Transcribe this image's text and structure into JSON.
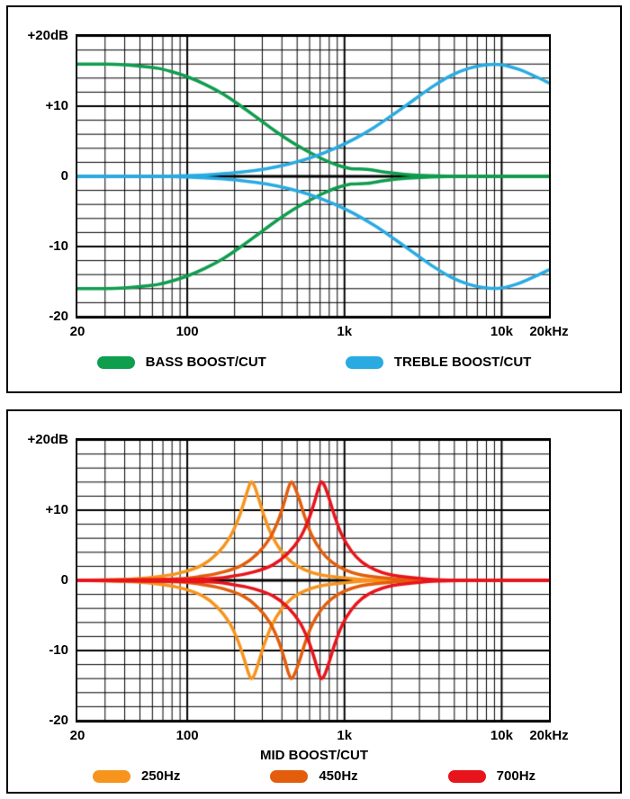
{
  "page": {
    "background": "#ffffff",
    "grid_color": "#000000",
    "text_color": "#000000"
  },
  "colors": {
    "bass_green": "#0f9d4e",
    "treble_blue": "#29abe2",
    "mid_250_orange": "#f7941d",
    "mid_450_orange_red": "#e35d0c",
    "mid_700_red": "#e8141c"
  },
  "chart_data": [
    {
      "type": "line",
      "title": "",
      "xlabel": "",
      "ylabel": "",
      "x_scale": "log",
      "x_min": 20,
      "x_max": 20000,
      "y_min": -20,
      "y_max": 20,
      "grid": {
        "y_minor_step": 2,
        "x_minor": "log-integer-multiples",
        "grid_on": true
      },
      "y_ticks": [
        {
          "value": 20,
          "label": "+20dB"
        },
        {
          "value": 10,
          "label": "+10"
        },
        {
          "value": 0,
          "label": "0"
        },
        {
          "value": -10,
          "label": "-10"
        },
        {
          "value": -20,
          "label": "-20"
        }
      ],
      "x_ticks": [
        {
          "value": 20,
          "label": "20"
        },
        {
          "value": 100,
          "label": "100"
        },
        {
          "value": 1000,
          "label": "1k"
        },
        {
          "value": 10000,
          "label": "10k"
        }
      ],
      "x_end_label": "20kHz",
      "series": [
        {
          "name": "bass-boost-cut",
          "color": "#0f9d4e",
          "mirror_cut": true,
          "points": [
            [
              20,
              16
            ],
            [
              30,
              16
            ],
            [
              40,
              15.9
            ],
            [
              50,
              15.7
            ],
            [
              65,
              15.4
            ],
            [
              80,
              14.9
            ],
            [
              100,
              14.2
            ],
            [
              130,
              13.1
            ],
            [
              170,
              11.7
            ],
            [
              220,
              10
            ],
            [
              280,
              8.3
            ],
            [
              360,
              6.5
            ],
            [
              460,
              4.9
            ],
            [
              580,
              3.6
            ],
            [
              720,
              2.5
            ],
            [
              900,
              1.6
            ],
            [
              1100,
              1.1
            ],
            [
              1400,
              1
            ],
            [
              1800,
              0.6
            ],
            [
              2400,
              0.3
            ],
            [
              3500,
              0.1
            ],
            [
              6000,
              0
            ],
            [
              12000,
              0
            ],
            [
              20000,
              0
            ]
          ]
        },
        {
          "name": "treble-boost-cut",
          "color": "#29abe2",
          "mirror_cut": true,
          "points": [
            [
              20,
              0
            ],
            [
              60,
              0
            ],
            [
              100,
              0.1
            ],
            [
              150,
              0.3
            ],
            [
              220,
              0.6
            ],
            [
              320,
              1.1
            ],
            [
              450,
              1.8
            ],
            [
              620,
              2.7
            ],
            [
              850,
              3.9
            ],
            [
              1150,
              5.3
            ],
            [
              1550,
              7
            ],
            [
              2100,
              9
            ],
            [
              2800,
              11
            ],
            [
              3700,
              12.9
            ],
            [
              4800,
              14.4
            ],
            [
              6200,
              15.4
            ],
            [
              8000,
              15.9
            ],
            [
              10000,
              15.9
            ],
            [
              13000,
              15.2
            ],
            [
              16500,
              14.2
            ],
            [
              20000,
              13.3
            ]
          ]
        }
      ],
      "legend": [
        {
          "label": "BASS BOOST/CUT",
          "color": "#0f9d4e"
        },
        {
          "label": "TREBLE BOOST/CUT",
          "color": "#29abe2"
        }
      ],
      "legend_position": "bottom"
    },
    {
      "type": "line",
      "title": "MID BOOST/CUT",
      "xlabel": "",
      "ylabel": "",
      "x_scale": "log",
      "x_min": 20,
      "x_max": 20000,
      "y_min": -20,
      "y_max": 20,
      "grid": {
        "y_minor_step": 2,
        "x_minor": "log-integer-multiples",
        "grid_on": true
      },
      "y_ticks": [
        {
          "value": 20,
          "label": "+20dB"
        },
        {
          "value": 10,
          "label": "+10"
        },
        {
          "value": 0,
          "label": "0"
        },
        {
          "value": -10,
          "label": "-10"
        },
        {
          "value": -20,
          "label": "-20"
        }
      ],
      "x_ticks": [
        {
          "value": 20,
          "label": "20"
        },
        {
          "value": 100,
          "label": "100"
        },
        {
          "value": 1000,
          "label": "1k"
        },
        {
          "value": 10000,
          "label": "10k"
        }
      ],
      "x_end_label": "20kHz",
      "series": [
        {
          "name": "mid-250hz-boost-cut",
          "color": "#f7941d",
          "mirror_cut": true,
          "points": [
            [
              20,
              0
            ],
            [
              45,
              0.2
            ],
            [
              70,
              0.6
            ],
            [
              95,
              1.2
            ],
            [
              125,
              2.2
            ],
            [
              155,
              3.8
            ],
            [
              185,
              6
            ],
            [
              210,
              8.6
            ],
            [
              230,
              11.2
            ],
            [
              245,
              13.2
            ],
            [
              255,
              14
            ],
            [
              268,
              13.4
            ],
            [
              285,
              11.6
            ],
            [
              310,
              9
            ],
            [
              345,
              6.4
            ],
            [
              395,
              4.2
            ],
            [
              460,
              2.6
            ],
            [
              560,
              1.5
            ],
            [
              700,
              0.8
            ],
            [
              950,
              0.4
            ],
            [
              1400,
              0.1
            ],
            [
              2500,
              0
            ],
            [
              20000,
              0
            ]
          ]
        },
        {
          "name": "mid-450hz-boost-cut",
          "color": "#e35d0c",
          "mirror_cut": true,
          "points": [
            [
              20,
              0
            ],
            [
              80,
              0.2
            ],
            [
              125,
              0.6
            ],
            [
              170,
              1.2
            ],
            [
              225,
              2.2
            ],
            [
              280,
              3.8
            ],
            [
              335,
              6
            ],
            [
              380,
              8.6
            ],
            [
              415,
              11.2
            ],
            [
              440,
              13.2
            ],
            [
              460,
              14
            ],
            [
              480,
              13.4
            ],
            [
              515,
              11.6
            ],
            [
              560,
              9
            ],
            [
              620,
              6.4
            ],
            [
              710,
              4.2
            ],
            [
              830,
              2.6
            ],
            [
              1010,
              1.5
            ],
            [
              1260,
              0.8
            ],
            [
              1710,
              0.4
            ],
            [
              2520,
              0.1
            ],
            [
              4500,
              0
            ],
            [
              20000,
              0
            ]
          ]
        },
        {
          "name": "mid-700hz-boost-cut",
          "color": "#e8141c",
          "mirror_cut": true,
          "points": [
            [
              20,
              0
            ],
            [
              125,
              0.2
            ],
            [
              195,
              0.6
            ],
            [
              265,
              1.2
            ],
            [
              350,
              2.2
            ],
            [
              435,
              3.8
            ],
            [
              520,
              6
            ],
            [
              590,
              8.6
            ],
            [
              645,
              11.2
            ],
            [
              685,
              13.2
            ],
            [
              715,
              14
            ],
            [
              750,
              13.4
            ],
            [
              800,
              11.6
            ],
            [
              870,
              9
            ],
            [
              965,
              6.4
            ],
            [
              1105,
              4.2
            ],
            [
              1290,
              2.6
            ],
            [
              1570,
              1.5
            ],
            [
              1960,
              0.8
            ],
            [
              2660,
              0.4
            ],
            [
              3920,
              0.1
            ],
            [
              7000,
              0
            ],
            [
              20000,
              0
            ]
          ]
        }
      ],
      "legend": [
        {
          "label": "250Hz",
          "color": "#f7941d"
        },
        {
          "label": "450Hz",
          "color": "#e35d0c"
        },
        {
          "label": "700Hz",
          "color": "#e8141c"
        }
      ],
      "legend_position": "bottom"
    }
  ]
}
